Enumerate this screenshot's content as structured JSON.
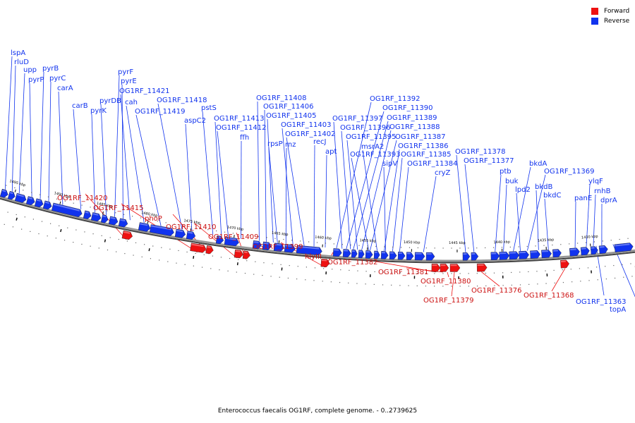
{
  "colors": {
    "forward": "#ee1111",
    "reverse": "#1133ee",
    "backbone": "#999999"
  },
  "legend": {
    "forward": "Forward",
    "reverse": "Reverse"
  },
  "caption": "Enterococcus faecalis OG1RF, complete genome. - 0..2739625",
  "ticks": [
    "1495 kbp",
    "1490 kbp",
    "1485 kbp",
    "1480 kbp",
    "1475 kbp",
    "1470 kbp",
    "1465 kbp",
    "1460 kbp",
    "1455 kbp",
    "1450 kbp",
    "1445 kbp",
    "1440 kbp",
    "1435 kbp",
    "1430 kbp"
  ],
  "reverse_labels": [
    "lspA",
    "rluD",
    "upp",
    "pyrP",
    "pyrB",
    "pyrC",
    "carA",
    "carB",
    "pyrK",
    "pyrDB",
    "pyrF",
    "pyrE",
    "OG1RF_11421",
    "cah",
    "OG1RF_11419",
    "OG1RF_11418",
    "aspC2",
    "pstS",
    "OG1RF_11413",
    "OG1RF_11412",
    "ffh",
    "OG1RF_11408",
    "OG1RF_11406",
    "OG1RF_11405",
    "rpsP",
    "rnz",
    "OG1RF_11403",
    "OG1RF_11402",
    "recJ",
    "apt",
    "OG1RF_11392",
    "OG1RF_11390",
    "OG1RF_11389",
    "OG1RF_11397",
    "OG1RF_11388",
    "OG1RF_11396",
    "OG1RF_11395",
    "OG1RF_11387",
    "msrA2",
    "OG1RF_11386",
    "OG1RF_11393",
    "OG1RF_11385",
    "sipV",
    "OG1RF_11384",
    "cryZ",
    "OG1RF_11378",
    "OG1RF_11377",
    "ptb",
    "bkdA",
    "buk",
    "OG1RF_11369",
    "lpd2",
    "bkdB",
    "bkdC",
    "ylqF",
    "panE",
    "rnhB",
    "dprA",
    "OG1RF_11363",
    "topA"
  ],
  "forward_labels": [
    "OG1RF_11420",
    "OG1RF_11415",
    "phoP",
    "OG1RF_11410",
    "OG1RF_11409",
    "OG1RF_11399",
    "hlyIII",
    "OG1RF_11382",
    "OG1RF_11381",
    "OG1RF_11380",
    "OG1RF_11379",
    "OG1RF_11376",
    "OG1RF_11368"
  ]
}
